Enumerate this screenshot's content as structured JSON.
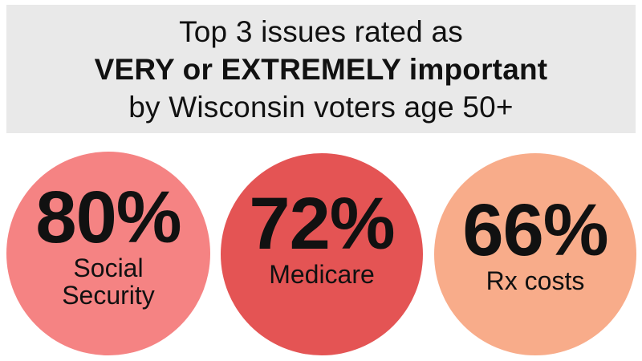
{
  "header": {
    "line1": "Top 3 issues rated as",
    "line2": "VERY or EXTREMELY important",
    "line3": "by Wisconsin voters age 50+"
  },
  "chart_data": {
    "type": "bubble",
    "title": "Top 3 issues rated as VERY or EXTREMELY important by Wisconsin voters age 50+",
    "categories": [
      "Social Security",
      "Medicare",
      "Rx costs"
    ],
    "values": [
      80,
      72,
      66
    ],
    "unit": "%",
    "items": [
      {
        "value_label": "80%",
        "label_lines": [
          "Social",
          "Security"
        ],
        "value": 80,
        "color": "#f58383"
      },
      {
        "value_label": "72%",
        "label_lines": [
          "Medicare"
        ],
        "value": 72,
        "color": "#e45454"
      },
      {
        "value_label": "66%",
        "label_lines": [
          "Rx costs"
        ],
        "value": 66,
        "color": "#f8ac8a"
      }
    ]
  }
}
